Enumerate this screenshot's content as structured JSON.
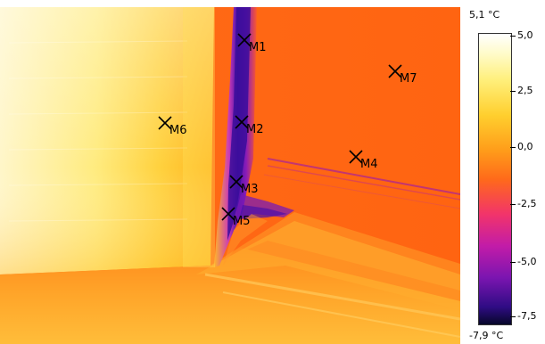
{
  "image": {
    "subject": "thermal-image",
    "palette": "iron"
  },
  "markers": [
    {
      "id": "m1",
      "label": "M1"
    },
    {
      "id": "m2",
      "label": "M2"
    },
    {
      "id": "m3",
      "label": "M3"
    },
    {
      "id": "m4",
      "label": "M4"
    },
    {
      "id": "m5",
      "label": "M5"
    },
    {
      "id": "m6",
      "label": "M6"
    },
    {
      "id": "m7",
      "label": "M7"
    }
  ],
  "scale": {
    "max_label": "5,1 °C",
    "min_label": "-7,9 °C",
    "ticks": [
      "5,0",
      "2,5",
      "0,0",
      "-2,5",
      "-5,0",
      "-7,5"
    ],
    "colors": {
      "hot": "#ffffff",
      "warm": "#ffcf2e",
      "mid": "#ff6a1a",
      "cool": "#c21ca8",
      "cold": "#07072a"
    }
  }
}
